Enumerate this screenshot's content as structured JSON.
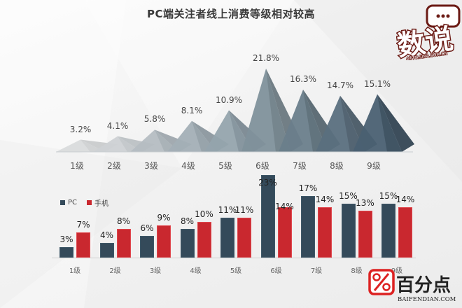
{
  "title": "PC端关注者线上消费等级相对较高",
  "logos": {
    "top_text": "数说",
    "top_subtext": "AUTO.SINA.COM.CN",
    "bottom_brand": "百分点",
    "bottom_url": "BAIFENDIAN.COM"
  },
  "colors": {
    "pc": "#344a5a",
    "mobile": "#c9282f"
  },
  "chart_data": [
    {
      "type": "bar",
      "subtype": "pyramid",
      "title": "PC端关注者线上消费等级相对较高",
      "categories": [
        "1级",
        "2级",
        "3级",
        "4级",
        "5级",
        "6级",
        "7级",
        "8级",
        "9级"
      ],
      "values": [
        3.2,
        4.1,
        5.8,
        8.1,
        10.9,
        21.8,
        16.3,
        14.7,
        15.1
      ],
      "labels": [
        "3.2%",
        "4.1%",
        "5.8%",
        "8.1%",
        "10.9%",
        "21.8%",
        "16.3%",
        "14.7%",
        "15.1%"
      ],
      "xlabel": "",
      "ylabel": "",
      "grid": false
    },
    {
      "type": "bar",
      "categories": [
        "1级",
        "2级",
        "3级",
        "4级",
        "5级",
        "6级",
        "7级",
        "8级",
        "9级"
      ],
      "series": [
        {
          "name": "PC",
          "values": [
            3,
            4,
            6,
            8,
            11,
            23,
            17,
            15,
            15
          ],
          "labels": [
            "3%",
            "4%",
            "6%",
            "8%",
            "11%",
            "23%",
            "17%",
            "15%",
            "15%"
          ]
        },
        {
          "name": "手机",
          "values": [
            7,
            8,
            9,
            10,
            11,
            14,
            14,
            13,
            14
          ],
          "labels": [
            "7%",
            "8%",
            "9%",
            "10%",
            "11%",
            "14%",
            "14%",
            "13%",
            "14%"
          ]
        }
      ],
      "legend_position": "top-left",
      "xlabel": "",
      "ylabel": "",
      "grid": false
    }
  ]
}
